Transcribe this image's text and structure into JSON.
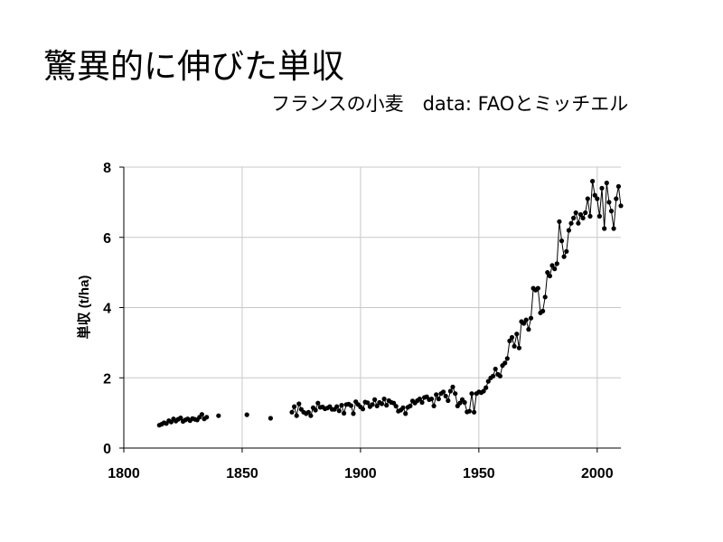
{
  "title": "驚異的に伸びた単収",
  "subtitle": "フランスの小麦　data: FAOとミッチエル",
  "chart_data": {
    "type": "line",
    "xlabel": "",
    "ylabel": "単収 (t/ha)",
    "xlim": [
      1800,
      2010
    ],
    "ylim": [
      0,
      8
    ],
    "xticks": [
      1800,
      1850,
      1900,
      1950,
      2000
    ],
    "yticks": [
      0,
      2,
      4,
      6,
      8
    ],
    "grid": true,
    "legend": "none",
    "colors": {
      "line": "#000000",
      "marker": "#000000",
      "grid": "#c8c8c8"
    },
    "series": [
      {
        "name": "",
        "points": [
          [
            1815,
            0.65
          ],
          [
            1816,
            0.68
          ],
          [
            1817,
            0.72
          ],
          [
            1818,
            0.7
          ],
          [
            1819,
            0.78
          ],
          [
            1820,
            0.74
          ],
          [
            1821,
            0.83
          ],
          [
            1822,
            0.77
          ],
          [
            1823,
            0.82
          ],
          [
            1824,
            0.86
          ],
          [
            1825,
            0.76
          ],
          [
            1826,
            0.8
          ],
          [
            1827,
            0.83
          ],
          [
            1828,
            0.78
          ],
          [
            1829,
            0.84
          ],
          [
            1830,
            0.82
          ],
          [
            1831,
            0.8
          ],
          [
            1832,
            0.88
          ],
          [
            1833,
            0.96
          ],
          [
            1834,
            0.83
          ],
          [
            1835,
            0.88
          ],
          null,
          [
            1840,
            0.92
          ],
          null,
          [
            1852,
            0.95
          ],
          null,
          [
            1862,
            0.85
          ],
          null,
          [
            1871,
            1.02
          ],
          [
            1872,
            1.18
          ],
          [
            1873,
            0.92
          ],
          [
            1874,
            1.26
          ],
          [
            1875,
            1.1
          ],
          [
            1876,
            1.02
          ],
          [
            1877,
            0.98
          ],
          [
            1878,
            1.02
          ],
          [
            1879,
            0.92
          ],
          [
            1880,
            1.15
          ],
          [
            1881,
            1.08
          ],
          [
            1882,
            1.28
          ],
          [
            1883,
            1.16
          ],
          [
            1884,
            1.17
          ],
          [
            1885,
            1.12
          ],
          [
            1886,
            1.14
          ],
          [
            1887,
            1.18
          ],
          [
            1888,
            1.1
          ],
          [
            1889,
            1.1
          ],
          [
            1890,
            1.18
          ],
          [
            1891,
            1.06
          ],
          [
            1892,
            1.22
          ],
          [
            1893,
            0.99
          ],
          [
            1894,
            1.24
          ],
          [
            1895,
            1.25
          ],
          [
            1896,
            1.21
          ],
          [
            1897,
            0.98
          ],
          [
            1898,
            1.32
          ],
          [
            1899,
            1.24
          ],
          [
            1900,
            1.17
          ],
          [
            1901,
            1.11
          ],
          [
            1902,
            1.31
          ],
          [
            1903,
            1.29
          ],
          [
            1904,
            1.18
          ],
          [
            1905,
            1.24
          ],
          [
            1906,
            1.38
          ],
          [
            1907,
            1.2
          ],
          [
            1908,
            1.3
          ],
          [
            1909,
            1.26
          ],
          [
            1910,
            1.4
          ],
          [
            1911,
            1.22
          ],
          [
            1912,
            1.35
          ],
          [
            1913,
            1.3
          ],
          [
            1914,
            1.28
          ],
          [
            1915,
            1.19
          ],
          [
            1916,
            1.05
          ],
          [
            1917,
            1.08
          ],
          [
            1918,
            1.15
          ],
          [
            1919,
            0.98
          ],
          [
            1920,
            1.16
          ],
          [
            1921,
            1.2
          ],
          [
            1922,
            1.34
          ],
          [
            1923,
            1.28
          ],
          [
            1924,
            1.35
          ],
          [
            1925,
            1.4
          ],
          [
            1926,
            1.3
          ],
          [
            1927,
            1.44
          ],
          [
            1928,
            1.46
          ],
          [
            1929,
            1.38
          ],
          [
            1930,
            1.4
          ],
          [
            1931,
            1.2
          ],
          [
            1932,
            1.52
          ],
          [
            1933,
            1.4
          ],
          [
            1934,
            1.55
          ],
          [
            1935,
            1.6
          ],
          [
            1936,
            1.48
          ],
          [
            1937,
            1.35
          ],
          [
            1938,
            1.62
          ],
          [
            1939,
            1.74
          ],
          [
            1940,
            1.55
          ],
          [
            1941,
            1.2
          ],
          [
            1942,
            1.28
          ],
          [
            1943,
            1.38
          ],
          [
            1944,
            1.3
          ],
          [
            1945,
            1.03
          ],
          [
            1946,
            1.05
          ],
          [
            1947,
            1.55
          ],
          [
            1948,
            1.02
          ],
          [
            1949,
            1.55
          ],
          [
            1950,
            1.6
          ],
          [
            1951,
            1.58
          ],
          [
            1952,
            1.62
          ],
          [
            1953,
            1.72
          ],
          [
            1954,
            1.9
          ],
          [
            1955,
            2.0
          ],
          [
            1956,
            2.05
          ],
          [
            1957,
            2.25
          ],
          [
            1958,
            2.1
          ],
          [
            1959,
            2.05
          ],
          [
            1960,
            2.35
          ],
          [
            1961,
            2.42
          ],
          [
            1962,
            2.55
          ],
          [
            1963,
            3.05
          ],
          [
            1964,
            3.15
          ],
          [
            1965,
            2.9
          ],
          [
            1966,
            3.25
          ],
          [
            1967,
            2.85
          ],
          [
            1968,
            3.6
          ],
          [
            1969,
            3.55
          ],
          [
            1970,
            3.65
          ],
          [
            1971,
            3.38
          ],
          [
            1972,
            3.7
          ],
          [
            1973,
            4.55
          ],
          [
            1974,
            4.5
          ],
          [
            1975,
            4.55
          ],
          [
            1976,
            3.85
          ],
          [
            1977,
            3.9
          ],
          [
            1978,
            4.3
          ],
          [
            1979,
            5.0
          ],
          [
            1980,
            4.9
          ],
          [
            1981,
            5.2
          ],
          [
            1982,
            5.1
          ],
          [
            1983,
            5.25
          ],
          [
            1984,
            6.45
          ],
          [
            1985,
            5.9
          ],
          [
            1986,
            5.45
          ],
          [
            1987,
            5.6
          ],
          [
            1988,
            6.2
          ],
          [
            1989,
            6.4
          ],
          [
            1990,
            6.55
          ],
          [
            1991,
            6.7
          ],
          [
            1992,
            6.4
          ],
          [
            1993,
            6.65
          ],
          [
            1994,
            6.55
          ],
          [
            1995,
            6.7
          ],
          [
            1996,
            7.1
          ],
          [
            1997,
            6.6
          ],
          [
            1998,
            7.6
          ],
          [
            1999,
            7.2
          ],
          [
            2000,
            7.1
          ],
          [
            2001,
            6.6
          ],
          [
            2002,
            7.4
          ],
          [
            2003,
            6.25
          ],
          [
            2004,
            7.55
          ],
          [
            2005,
            7.0
          ],
          [
            2006,
            6.75
          ],
          [
            2007,
            6.25
          ],
          [
            2008,
            7.1
          ],
          [
            2009,
            7.45
          ],
          [
            2010,
            6.9
          ]
        ]
      }
    ]
  }
}
